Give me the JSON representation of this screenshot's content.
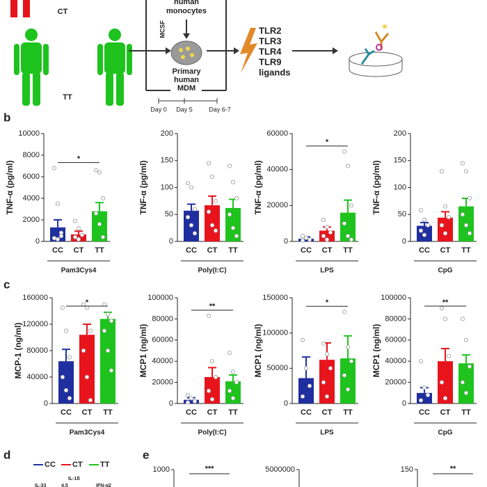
{
  "diagram": {
    "ct": "CT",
    "tt": "TT",
    "monocytes": [
      "human",
      "monocytes"
    ],
    "mcsf": "MCSF",
    "mdm": [
      "Primary",
      "human",
      "MDM"
    ],
    "ligands": [
      "TLR2",
      "TLR3",
      "TLR4",
      "TLR9",
      "ligands"
    ],
    "days": [
      "Day 0",
      "Day 5",
      "Day 6-7"
    ]
  },
  "panel_labels": {
    "b": "b",
    "c": "c",
    "d": "d",
    "e": "e"
  },
  "panel_d": {
    "legend": [
      {
        "name": "CC",
        "color": "#1f2fa0"
      },
      {
        "name": "CT",
        "color": "#e8141c"
      },
      {
        "name": "TT",
        "color": "#1ec31e"
      }
    ],
    "labels": [
      "IL-33",
      "IL-1ß",
      "4.5",
      "IFN-α2"
    ]
  },
  "panel_e": [
    {
      "ytick": 1000,
      "sig": "***"
    },
    {
      "ytick": 5000000
    },
    {
      "ytick": 150,
      "sig": "**"
    }
  ],
  "chart_data": [
    {
      "type": "bar",
      "group": "Pam3Cys4",
      "ylabel": "TNF-α (pg/ml)",
      "categories": [
        "CC",
        "CT",
        "TT"
      ],
      "colors": [
        "#1f2fa0",
        "#e8141c",
        "#1ec31e"
      ],
      "values": [
        1300,
        650,
        2800
      ],
      "errors": [
        700,
        300,
        800
      ],
      "ylim": [
        0,
        10000
      ],
      "yticks": [
        0,
        2000,
        4000,
        6000,
        8000,
        10000
      ],
      "sig": "*",
      "points": [
        [
          6800,
          3500,
          800,
          300,
          200,
          500
        ],
        [
          1900,
          1200,
          600,
          400,
          200
        ],
        [
          6600,
          6400,
          4000,
          2600,
          1600,
          400
        ]
      ]
    },
    {
      "type": "bar",
      "group": "Poly(I:C)",
      "ylabel": "TNF-α (pg/ml)",
      "categories": [
        "CC",
        "CT",
        "TT"
      ],
      "colors": [
        "#1f2fa0",
        "#e8141c",
        "#1ec31e"
      ],
      "values": [
        57,
        67,
        62
      ],
      "errors": [
        12,
        17,
        16
      ],
      "ylim": [
        0,
        200
      ],
      "yticks": [
        0,
        50,
        100,
        150,
        200
      ],
      "points": [
        [
          108,
          100,
          60,
          45,
          30,
          15
        ],
        [
          145,
          120,
          75,
          55,
          30,
          20
        ],
        [
          140,
          110,
          80,
          50,
          25,
          10
        ]
      ]
    },
    {
      "type": "bar",
      "group": "LPS",
      "ylabel": "TNF-α (pg/ml)",
      "categories": [
        "CC",
        "CT",
        "TT"
      ],
      "colors": [
        "#1f2fa0",
        "#e8141c",
        "#1ec31e"
      ],
      "values": [
        1500,
        6000,
        16000
      ],
      "errors": [
        1000,
        2000,
        7000
      ],
      "ylim": [
        0,
        60000
      ],
      "yticks": [
        0,
        20000,
        40000,
        60000
      ],
      "sig": "*",
      "points": [
        [
          3000,
          2000,
          1000,
          500
        ],
        [
          12000,
          8000,
          5000,
          3000,
          1000
        ],
        [
          50000,
          42000,
          20000,
          10000,
          3000,
          1000
        ]
      ]
    },
    {
      "type": "bar",
      "group": "CpG",
      "ylabel": "TNF-α (pg/ml)",
      "categories": [
        "CC",
        "CT",
        "TT"
      ],
      "colors": [
        "#1f2fa0",
        "#e8141c",
        "#1ec31e"
      ],
      "values": [
        29,
        44,
        65
      ],
      "errors": [
        6,
        11,
        15
      ],
      "ylim": [
        0,
        200
      ],
      "yticks": [
        0,
        50,
        100,
        150,
        200
      ],
      "points": [
        [
          58,
          40,
          30,
          20,
          12
        ],
        [
          130,
          65,
          45,
          30,
          15
        ],
        [
          145,
          130,
          80,
          50,
          30,
          15
        ]
      ]
    },
    {
      "type": "bar",
      "group": "Pam3Cys4",
      "ylabel": "MCP-1 (ng/ml)",
      "categories": [
        "CC",
        "CT",
        "TT"
      ],
      "colors": [
        "#1f2fa0",
        "#e8141c",
        "#1ec31e"
      ],
      "values": [
        64000,
        104000,
        128000
      ],
      "errors": [
        18000,
        16000,
        10000
      ],
      "ylim": [
        0,
        160000
      ],
      "yticks": [
        0,
        40000,
        80000,
        120000,
        160000
      ],
      "sig": "*",
      "points": [
        [
          145000,
          110000,
          70000,
          40000,
          20000,
          8000
        ],
        [
          150000,
          145000,
          110000,
          80000,
          40000,
          5000
        ],
        [
          150000,
          135000,
          125000,
          110000,
          80000,
          50000
        ]
      ]
    },
    {
      "type": "bar",
      "group": "Poly(I:C)",
      "ylabel": "MCP1 (ng/ml)",
      "categories": [
        "CC",
        "CT",
        "TT"
      ],
      "colors": [
        "#1f2fa0",
        "#e8141c",
        "#1ec31e"
      ],
      "values": [
        3500,
        25000,
        21000
      ],
      "errors": [
        2000,
        9000,
        6000
      ],
      "ylim": [
        0,
        100000
      ],
      "yticks": [
        0,
        20000,
        40000,
        60000,
        80000,
        100000
      ],
      "sig": "**",
      "points": [
        [
          8000,
          5000,
          2000,
          1000
        ],
        [
          83000,
          40000,
          25000,
          12000,
          4000
        ],
        [
          48000,
          30000,
          20000,
          12000,
          5000
        ]
      ]
    },
    {
      "type": "bar",
      "group": "LPS",
      "ylabel": "MCP1 (ng/ml)",
      "categories": [
        "CC",
        "CT",
        "TT"
      ],
      "colors": [
        "#1f2fa0",
        "#e8141c",
        "#1ec31e"
      ],
      "values": [
        36000,
        62000,
        64000
      ],
      "errors": [
        30000,
        24000,
        32000
      ],
      "ylim": [
        0,
        150000
      ],
      "yticks": [
        0,
        50000,
        100000,
        150000
      ],
      "sig": "*",
      "points": [
        [
          90000,
          50000,
          25000,
          10000
        ],
        [
          85000,
          70000,
          50000,
          30000,
          10000
        ],
        [
          130000,
          80000,
          60000,
          40000,
          20000
        ]
      ]
    },
    {
      "type": "bar",
      "group": "CpG",
      "ylabel": "MCP1 (ng/ml)",
      "categories": [
        "CC",
        "CT",
        "TT"
      ],
      "colors": [
        "#1f2fa0",
        "#e8141c",
        "#1ec31e"
      ],
      "values": [
        10000,
        40000,
        38000
      ],
      "errors": [
        5000,
        12000,
        8000
      ],
      "ylim": [
        0,
        100000
      ],
      "yticks": [
        0,
        20000,
        40000,
        60000,
        80000,
        100000
      ],
      "sig": "**",
      "points": [
        [
          40000,
          15000,
          8000,
          3000
        ],
        [
          90000,
          80000,
          45000,
          20000,
          5000
        ],
        [
          80000,
          60000,
          35000,
          20000,
          10000
        ]
      ]
    }
  ]
}
